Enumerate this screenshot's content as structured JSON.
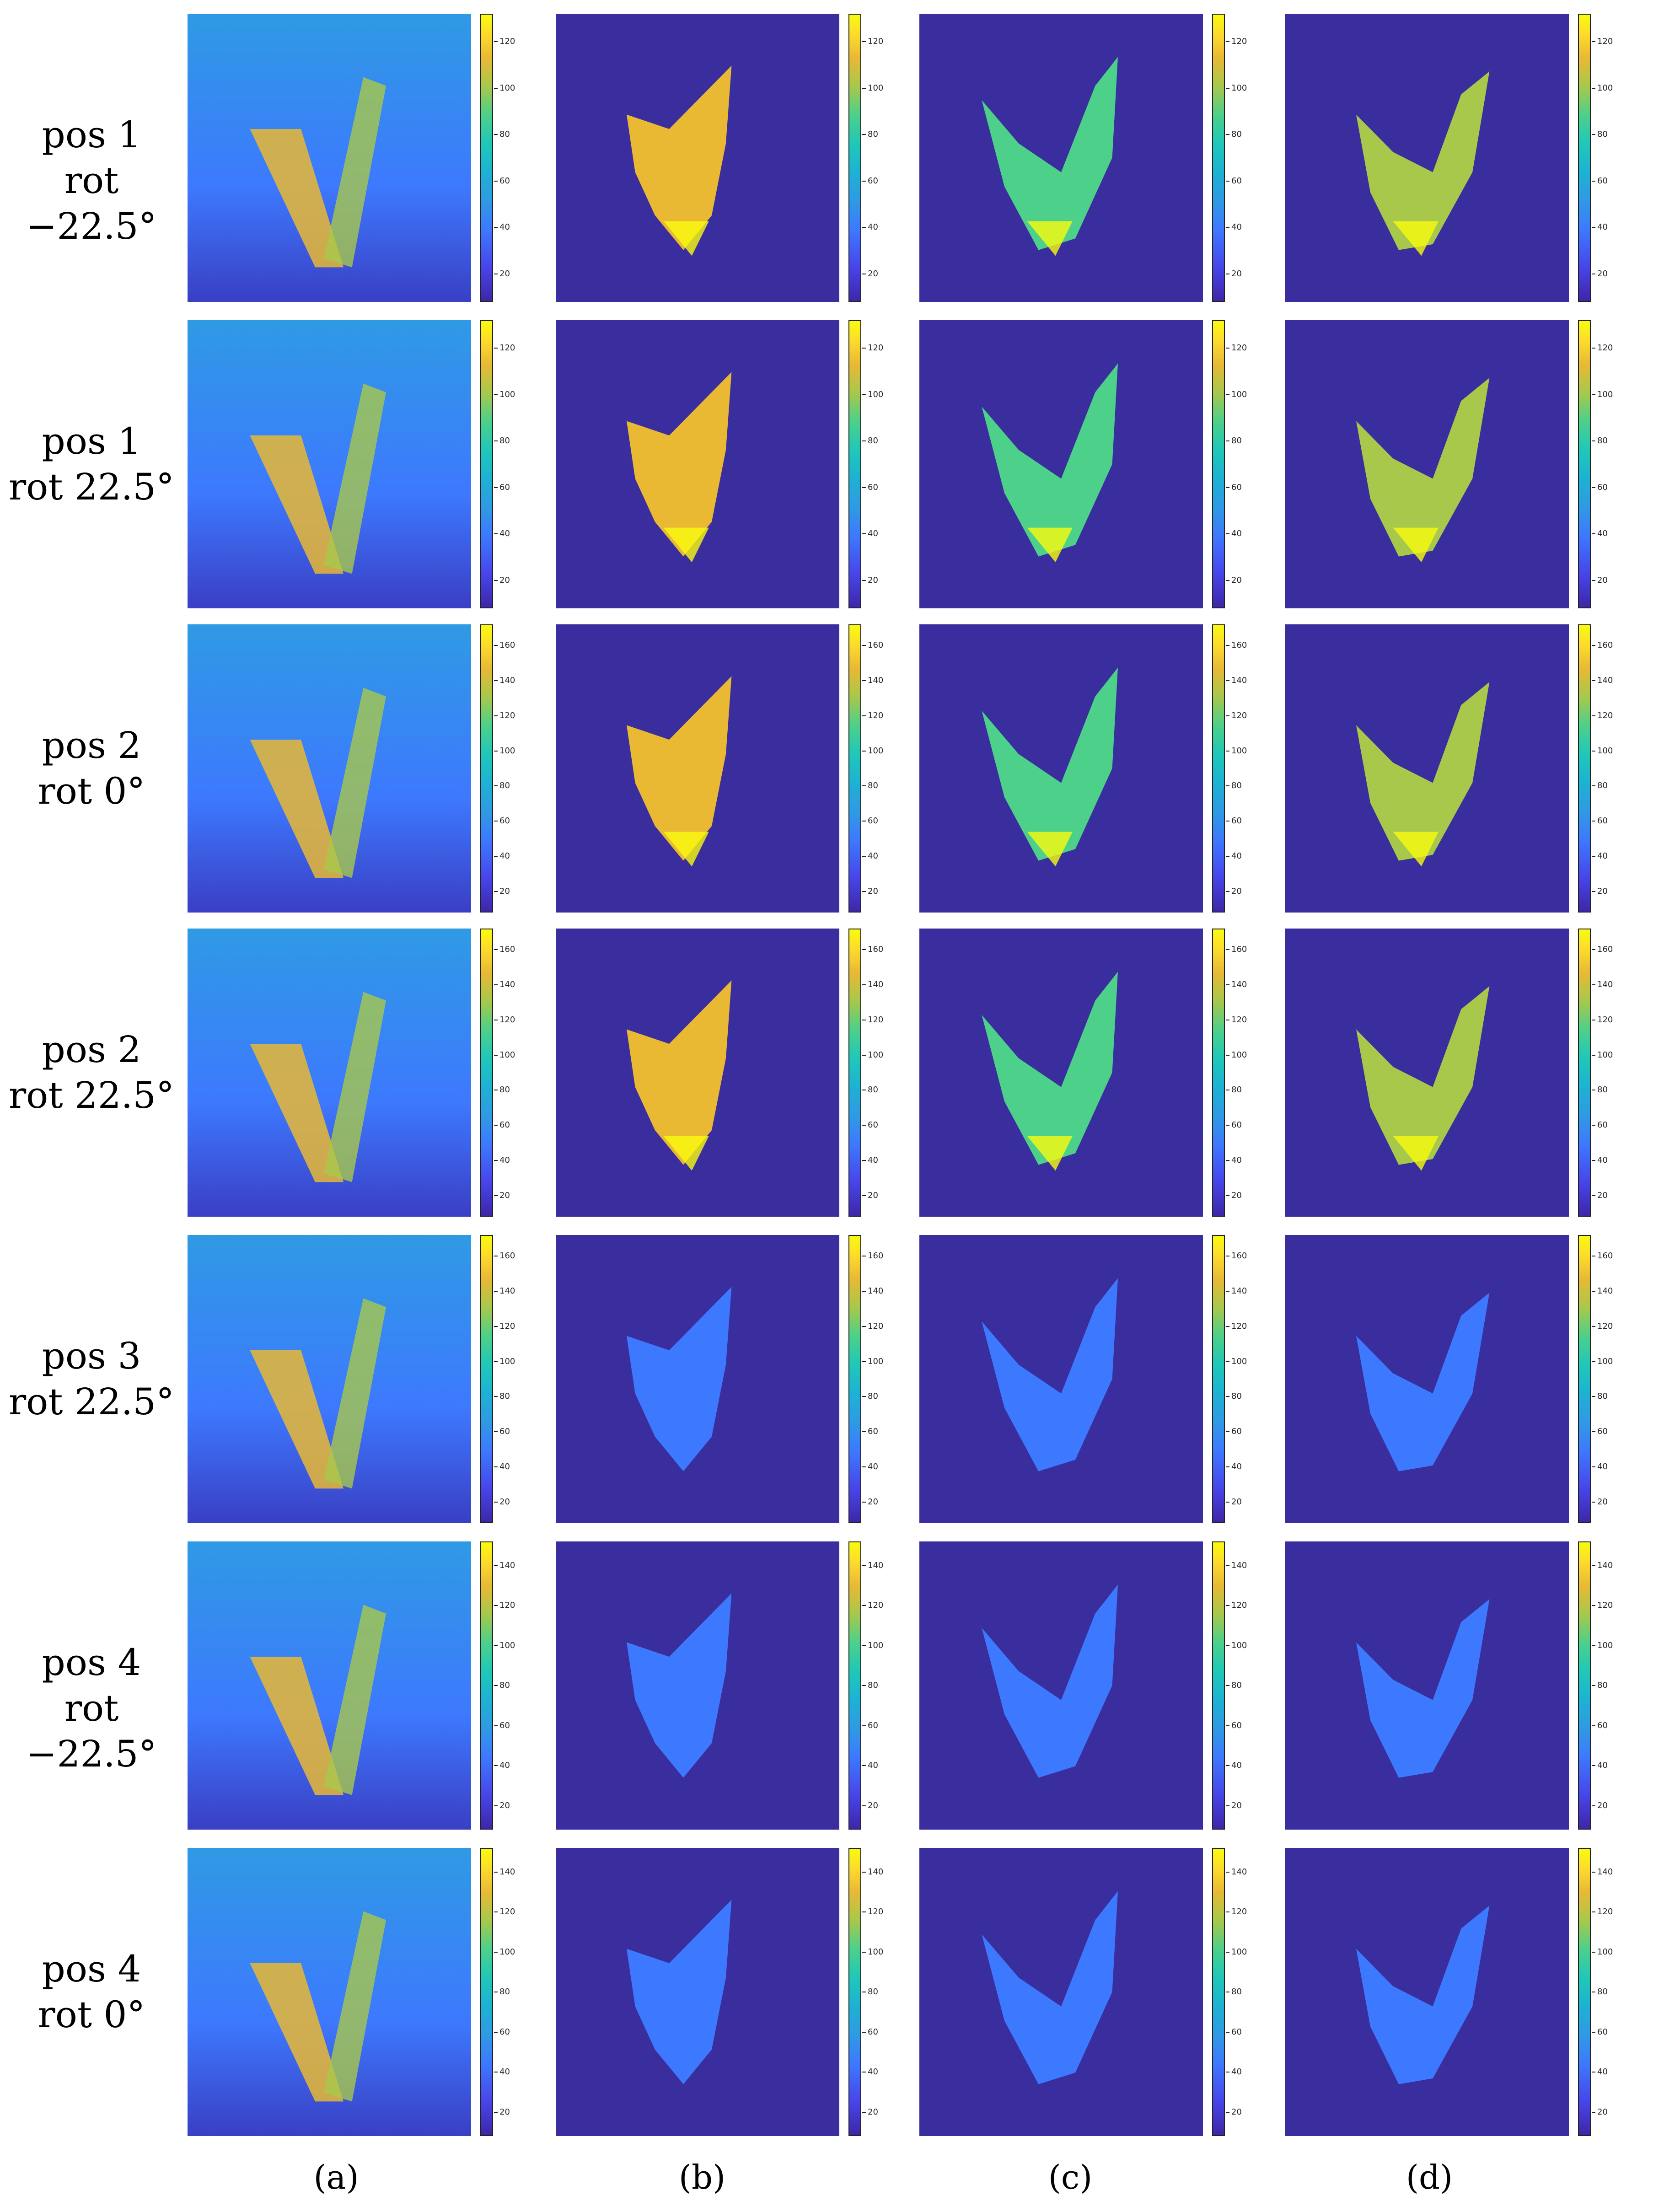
{
  "figure": {
    "rows": [
      {
        "pos": "pos 1",
        "rot": "rot −22.5°"
      },
      {
        "pos": "pos 1",
        "rot": "rot 22.5°"
      },
      {
        "pos": "pos 2",
        "rot": "rot 0°"
      },
      {
        "pos": "pos 2",
        "rot": "rot 22.5°"
      },
      {
        "pos": "pos 3",
        "rot": "rot 22.5°"
      },
      {
        "pos": "pos 4",
        "rot": "rot −22.5°"
      },
      {
        "pos": "pos 4",
        "rot": "rot 0°"
      }
    ],
    "columns": [
      "(a)",
      "(b)",
      "(c)",
      "(d)"
    ],
    "colorbar_ticks": [
      [
        "20",
        "40",
        "60",
        "80",
        "100",
        "120"
      ],
      [
        "20",
        "40",
        "60",
        "80",
        "100",
        "120"
      ],
      [
        "20",
        "40",
        "60",
        "80",
        "100",
        "120",
        "140",
        "160"
      ],
      [
        "20",
        "40",
        "60",
        "80",
        "100",
        "120",
        "140",
        "160"
      ],
      [
        "20",
        "40",
        "60",
        "80",
        "100",
        "120",
        "140",
        "160"
      ],
      [
        "20",
        "40",
        "60",
        "80",
        "100",
        "120",
        "140"
      ],
      [
        "20",
        "40",
        "60",
        "80",
        "100",
        "120",
        "140"
      ]
    ],
    "colormap": "parula",
    "colors": {
      "background_low": "#3a2d9d",
      "mid": "#1db2d3",
      "high": "#f9fb0e"
    }
  }
}
